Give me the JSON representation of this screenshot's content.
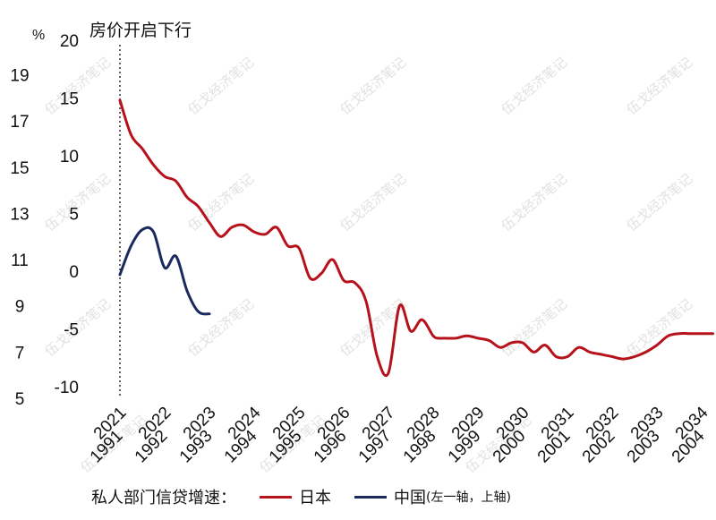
{
  "chart_data": {
    "type": "line",
    "annotation": "房价开启下行",
    "unit_left": "%",
    "y_left_outer": {
      "ticks": [
        5,
        7,
        9,
        11,
        13,
        15,
        17,
        19
      ],
      "ylim": [
        5,
        20.3
      ]
    },
    "y_left_inner": {
      "ticks": [
        -10,
        -5,
        0,
        5,
        10,
        15,
        20
      ],
      "ylim": [
        -10,
        20
      ]
    },
    "x_top": {
      "ticks": [
        "2021",
        "2022",
        "2023",
        "2024",
        "2025",
        "2026",
        "2027",
        "2028",
        "2029",
        "2030",
        "2031",
        "2032",
        "2033",
        "2034"
      ]
    },
    "x_bottom": {
      "ticks": [
        "1991",
        "1992",
        "1993",
        "1994",
        "1995",
        "1996",
        "1997",
        "1998",
        "1999",
        "2000",
        "2001",
        "2002",
        "2003",
        "2004"
      ]
    },
    "legend_title": "私人部门信贷增速：",
    "series": [
      {
        "name": "日本",
        "axis": "left-outer / bottom",
        "color": "#b5121b",
        "x": [
          1991.0,
          1991.25,
          1991.5,
          1991.75,
          1992.0,
          1992.25,
          1992.5,
          1992.75,
          1993.0,
          1993.25,
          1993.5,
          1993.75,
          1994.0,
          1994.25,
          1994.5,
          1994.75,
          1995.0,
          1995.25,
          1995.5,
          1995.75,
          1996.0,
          1996.25,
          1996.5,
          1996.75,
          1997.0,
          1997.25,
          1997.5,
          1997.75,
          1998.0,
          1998.12,
          1998.25,
          1998.5,
          1998.75,
          1999.0,
          1999.25,
          1999.5,
          1999.75,
          2000.0,
          2000.25,
          2000.5,
          2000.75,
          2001.0,
          2001.25,
          2001.5,
          2001.75,
          2002.0,
          2002.25,
          2002.5,
          2002.75,
          2003.0,
          2003.25,
          2003.5,
          2003.75,
          2004.0,
          2004.25
        ],
        "y": [
          17.9,
          16.4,
          15.8,
          15.1,
          14.6,
          14.4,
          13.7,
          13.3,
          12.6,
          12.0,
          12.4,
          12.5,
          12.2,
          12.1,
          12.4,
          11.6,
          11.5,
          10.2,
          10.4,
          11.0,
          10.1,
          10.0,
          9.2,
          6.8,
          6.1,
          9.0,
          7.9,
          8.4,
          7.7,
          7.6,
          7.6,
          7.6,
          7.7,
          7.6,
          7.5,
          7.2,
          7.4,
          7.4,
          7.0,
          7.3,
          6.8,
          6.8,
          7.2,
          7.0,
          6.9,
          6.8,
          6.7,
          6.8,
          7.0,
          7.3,
          7.7,
          7.8,
          7.8,
          7.8,
          7.8
        ]
      },
      {
        "name": "中国（左一轴，上轴）",
        "axis": "left-inner / top",
        "color": "#1a2a5e",
        "x": [
          2021.0,
          2021.25,
          2021.5,
          2021.75,
          2022.0,
          2022.25,
          2022.5,
          2022.75,
          2023.0
        ],
        "y": [
          -0.3,
          2.2,
          3.6,
          3.4,
          0.3,
          1.3,
          -1.7,
          -3.5,
          -3.7
        ]
      }
    ]
  },
  "legend": {
    "title": "私人部门信贷增速：",
    "japan": "日本",
    "china": "中国",
    "china_note": "(左一轴，上轴)"
  },
  "watermark": "伍戈经济笔记"
}
